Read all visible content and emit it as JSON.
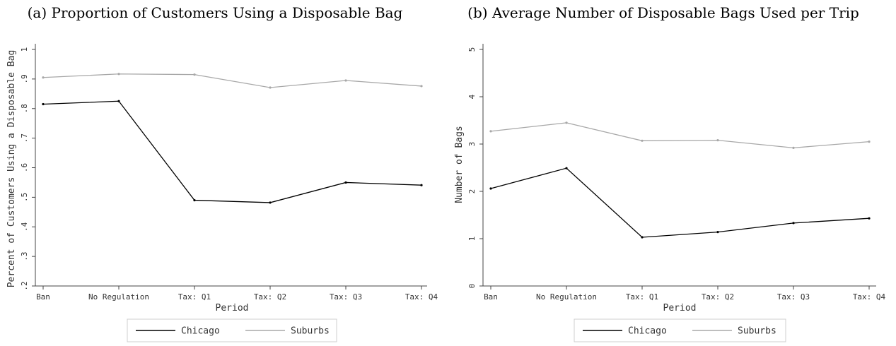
{
  "chart_data": [
    {
      "type": "line",
      "title": "(a) Proportion of Customers Using a Disposable Bag",
      "xlabel": "Period",
      "ylabel": "Percent of Customers Using a Disposable Bag",
      "categories": [
        "Ban",
        "No Regulation",
        "Tax: Q1",
        "Tax: Q2",
        "Tax: Q3",
        "Tax: Q4"
      ],
      "ylim": [
        0.2,
        1
      ],
      "yticks": [
        ".2",
        ".3",
        ".4",
        ".5",
        ".6",
        ".7",
        ".8",
        ".9",
        "1"
      ],
      "series": [
        {
          "name": "Chicago",
          "color": "#000000",
          "values": [
            0.815,
            0.825,
            0.49,
            0.482,
            0.55,
            0.541
          ]
        },
        {
          "name": "Suburbs",
          "color": "#a8a8a8",
          "values": [
            0.905,
            0.917,
            0.915,
            0.871,
            0.895,
            0.876
          ]
        }
      ],
      "grid": false,
      "legend": "bottom"
    },
    {
      "type": "line",
      "title": "(b) Average Number of Disposable Bags Used per Trip",
      "xlabel": "Period",
      "ylabel": "Number of Bags",
      "categories": [
        "Ban",
        "No Regulation",
        "Tax: Q1",
        "Tax: Q2",
        "Tax: Q3",
        "Tax: Q4"
      ],
      "ylim": [
        0,
        5
      ],
      "yticks": [
        "0",
        "1",
        "2",
        "3",
        "4",
        "5"
      ],
      "series": [
        {
          "name": "Chicago",
          "color": "#000000",
          "values": [
            2.06,
            2.49,
            1.03,
            1.14,
            1.33,
            1.43
          ]
        },
        {
          "name": "Suburbs",
          "color": "#a8a8a8",
          "values": [
            3.27,
            3.45,
            3.07,
            3.08,
            2.92,
            3.05
          ]
        }
      ],
      "grid": false,
      "legend": "bottom"
    }
  ]
}
